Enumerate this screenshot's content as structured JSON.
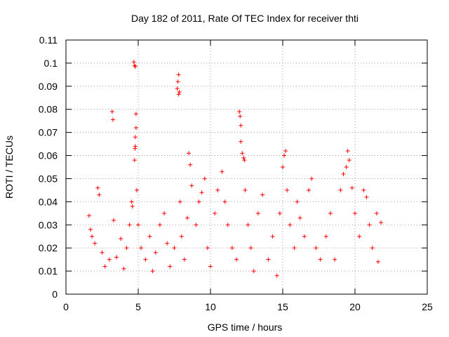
{
  "chart_data": {
    "type": "scatter",
    "title": "Day 182 of 2011, Rate Of TEC Index for receiver thti",
    "xlabel": "GPS time / hours",
    "ylabel": "ROTI / TECUs",
    "xlim": [
      0,
      25
    ],
    "ylim": [
      0,
      0.11
    ],
    "xticks": [
      0,
      5,
      10,
      15,
      20,
      25
    ],
    "xtick_labels": [
      "0",
      "5",
      "10",
      "15",
      "20",
      "25"
    ],
    "yticks": [
      0,
      0.01,
      0.02,
      0.03,
      0.04,
      0.05,
      0.06,
      0.07,
      0.08,
      0.09,
      0.1,
      0.11
    ],
    "ytick_labels": [
      "0",
      "0.01",
      "0.02",
      "0.03",
      "0.04",
      "0.05",
      "0.06",
      "0.07",
      "0.08",
      "0.09",
      "0.1",
      "0.11"
    ],
    "grid": true,
    "marker": "+",
    "color": "#ff0000",
    "series": [
      {
        "name": "ROTI",
        "points": [
          [
            1.6,
            0.034
          ],
          [
            1.7,
            0.028
          ],
          [
            1.8,
            0.025
          ],
          [
            2.0,
            0.022
          ],
          [
            2.2,
            0.046
          ],
          [
            2.3,
            0.043
          ],
          [
            2.5,
            0.018
          ],
          [
            2.7,
            0.012
          ],
          [
            3.0,
            0.015
          ],
          [
            3.2,
            0.079
          ],
          [
            3.25,
            0.0755
          ],
          [
            3.3,
            0.032
          ],
          [
            3.5,
            0.016
          ],
          [
            3.8,
            0.024
          ],
          [
            4.0,
            0.011
          ],
          [
            4.2,
            0.02
          ],
          [
            4.4,
            0.03
          ],
          [
            4.55,
            0.04
          ],
          [
            4.6,
            0.038
          ],
          [
            4.7,
            0.1005
          ],
          [
            4.75,
            0.099
          ],
          [
            4.8,
            0.0985
          ],
          [
            4.85,
            0.078
          ],
          [
            4.85,
            0.072
          ],
          [
            4.8,
            0.068
          ],
          [
            4.8,
            0.064
          ],
          [
            4.78,
            0.063
          ],
          [
            4.75,
            0.058
          ],
          [
            4.9,
            0.045
          ],
          [
            5.0,
            0.03
          ],
          [
            5.2,
            0.02
          ],
          [
            5.5,
            0.015
          ],
          [
            5.8,
            0.025
          ],
          [
            6.0,
            0.01
          ],
          [
            6.2,
            0.018
          ],
          [
            6.5,
            0.03
          ],
          [
            6.8,
            0.035
          ],
          [
            7.0,
            0.022
          ],
          [
            7.2,
            0.012
          ],
          [
            7.5,
            0.02
          ],
          [
            7.7,
            0.089
          ],
          [
            7.75,
            0.092
          ],
          [
            7.8,
            0.095
          ],
          [
            7.85,
            0.0875
          ],
          [
            7.8,
            0.0865
          ],
          [
            7.9,
            0.04
          ],
          [
            8.0,
            0.025
          ],
          [
            8.2,
            0.015
          ],
          [
            8.4,
            0.033
          ],
          [
            8.5,
            0.061
          ],
          [
            8.6,
            0.056
          ],
          [
            8.7,
            0.047
          ],
          [
            9.0,
            0.03
          ],
          [
            9.2,
            0.04
          ],
          [
            9.4,
            0.044
          ],
          [
            9.6,
            0.05
          ],
          [
            9.8,
            0.02
          ],
          [
            10.0,
            0.012
          ],
          [
            10.3,
            0.035
          ],
          [
            10.5,
            0.045
          ],
          [
            10.8,
            0.053
          ],
          [
            11.0,
            0.04
          ],
          [
            11.2,
            0.03
          ],
          [
            11.5,
            0.02
          ],
          [
            11.8,
            0.015
          ],
          [
            12.0,
            0.079
          ],
          [
            12.05,
            0.077
          ],
          [
            12.1,
            0.073
          ],
          [
            12.1,
            0.066
          ],
          [
            12.2,
            0.061
          ],
          [
            12.3,
            0.059
          ],
          [
            12.35,
            0.058
          ],
          [
            12.4,
            0.045
          ],
          [
            12.6,
            0.03
          ],
          [
            12.8,
            0.02
          ],
          [
            13.0,
            0.01
          ],
          [
            13.3,
            0.035
          ],
          [
            13.6,
            0.043
          ],
          [
            14.0,
            0.015
          ],
          [
            14.3,
            0.025
          ],
          [
            14.6,
            0.008
          ],
          [
            14.8,
            0.035
          ],
          [
            15.0,
            0.055
          ],
          [
            15.1,
            0.06
          ],
          [
            15.2,
            0.062
          ],
          [
            15.3,
            0.045
          ],
          [
            15.5,
            0.03
          ],
          [
            15.8,
            0.02
          ],
          [
            16.0,
            0.04
          ],
          [
            16.2,
            0.033
          ],
          [
            16.5,
            0.025
          ],
          [
            16.8,
            0.045
          ],
          [
            17.0,
            0.05
          ],
          [
            17.3,
            0.02
          ],
          [
            17.6,
            0.015
          ],
          [
            18.0,
            0.025
          ],
          [
            18.3,
            0.035
          ],
          [
            18.6,
            0.015
          ],
          [
            19.0,
            0.045
          ],
          [
            19.2,
            0.052
          ],
          [
            19.4,
            0.055
          ],
          [
            19.5,
            0.062
          ],
          [
            19.6,
            0.058
          ],
          [
            19.8,
            0.046
          ],
          [
            20.0,
            0.035
          ],
          [
            20.3,
            0.025
          ],
          [
            20.6,
            0.045
          ],
          [
            20.8,
            0.042
          ],
          [
            21.0,
            0.03
          ],
          [
            21.2,
            0.02
          ],
          [
            21.5,
            0.035
          ],
          [
            21.6,
            0.014
          ],
          [
            21.8,
            0.031
          ]
        ]
      }
    ]
  }
}
